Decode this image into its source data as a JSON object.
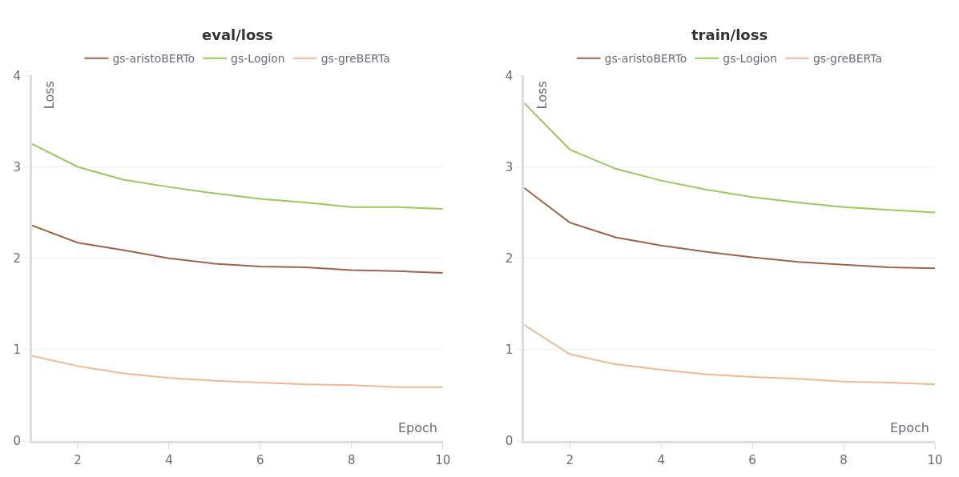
{
  "chart_data": [
    {
      "type": "line",
      "title": "eval/loss",
      "xlabel": "Epoch",
      "ylabel": "Loss",
      "x": [
        1,
        2,
        3,
        4,
        5,
        6,
        7,
        8,
        9,
        10
      ],
      "xlim": [
        1,
        10
      ],
      "xticks": [
        2,
        4,
        6,
        8,
        10
      ],
      "ylim": [
        0,
        4
      ],
      "yticks": [
        0,
        1,
        2,
        3,
        4
      ],
      "grid": "y",
      "legend": "top",
      "marker": "none",
      "line_style": "solid",
      "series": [
        {
          "name": "gs-aristoBERTo",
          "color": "#a0634a",
          "values": [
            2.36,
            2.17,
            2.09,
            2.0,
            1.94,
            1.91,
            1.9,
            1.87,
            1.86,
            1.84
          ]
        },
        {
          "name": "gs-Logion",
          "color": "#9bc85a",
          "values": [
            3.25,
            3.0,
            2.86,
            2.78,
            2.71,
            2.65,
            2.61,
            2.56,
            2.56,
            2.54
          ]
        },
        {
          "name": "gs-greBERTa",
          "color": "#f2b695",
          "values": [
            0.93,
            0.82,
            0.74,
            0.69,
            0.66,
            0.64,
            0.62,
            0.61,
            0.59,
            0.59
          ]
        }
      ]
    },
    {
      "type": "line",
      "title": "train/loss",
      "xlabel": "Epoch",
      "ylabel": "Loss",
      "x": [
        1,
        2,
        3,
        4,
        5,
        6,
        7,
        8,
        9,
        10
      ],
      "xlim": [
        1,
        10
      ],
      "xticks": [
        2,
        4,
        6,
        8,
        10
      ],
      "ylim": [
        0,
        4
      ],
      "yticks": [
        0,
        1,
        2,
        3,
        4
      ],
      "grid": "y",
      "legend": "top",
      "marker": "none",
      "line_style": "solid",
      "series": [
        {
          "name": "gs-aristoBERTo",
          "color": "#a0634a",
          "values": [
            2.77,
            2.39,
            2.23,
            2.14,
            2.07,
            2.01,
            1.96,
            1.93,
            1.9,
            1.89
          ]
        },
        {
          "name": "gs-Logion",
          "color": "#9bc85a",
          "values": [
            3.7,
            3.19,
            2.98,
            2.85,
            2.75,
            2.67,
            2.61,
            2.56,
            2.53,
            2.5
          ]
        },
        {
          "name": "gs-greBERTa",
          "color": "#f2b695",
          "values": [
            1.27,
            0.95,
            0.84,
            0.78,
            0.73,
            0.7,
            0.68,
            0.65,
            0.64,
            0.62
          ]
        }
      ]
    }
  ]
}
